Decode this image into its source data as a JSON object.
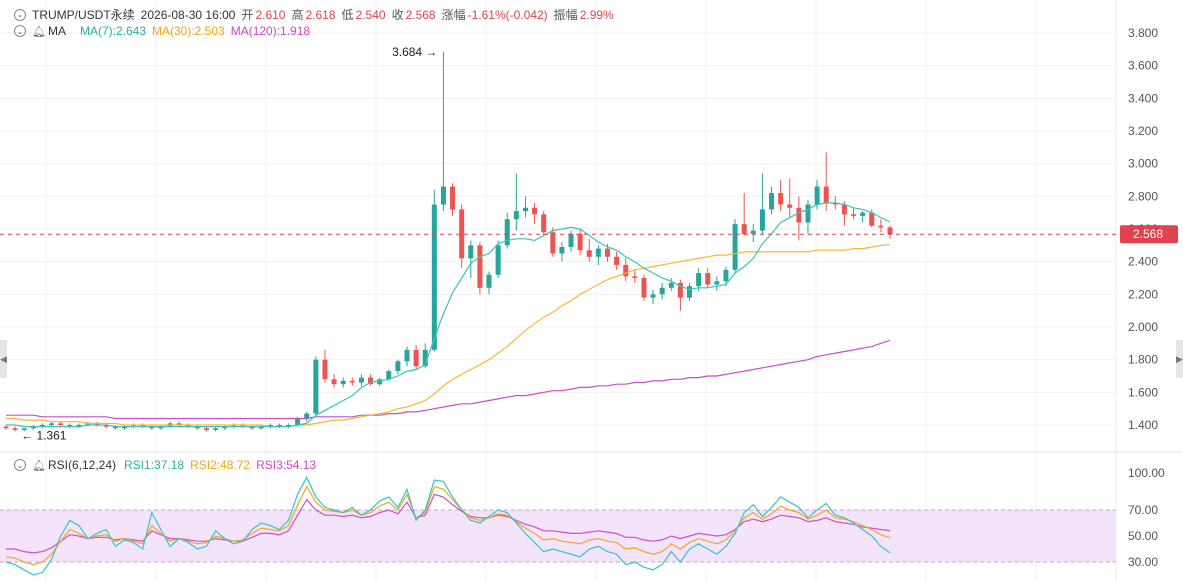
{
  "header": {
    "symbol": "TRUMP/USDT永续",
    "datetime": "2026-08-30 16:00",
    "open_label": "开",
    "open": "2.610",
    "high_label": "高",
    "high": "2.618",
    "low_label": "低",
    "low": "2.540",
    "close_label": "收",
    "close": "2.568",
    "change_label": "涨幅",
    "change": "-1.61%(-0.042)",
    "amp_label": "振幅",
    "amp": "2.99%"
  },
  "ma_header": {
    "name": "MA",
    "ma7": "MA(7):2.643",
    "ma30": "MA(30):2.503",
    "ma120": "MA(120):1.918"
  },
  "rsi_header": {
    "name": "RSI(6,12,24)",
    "rsi1": "RSI1:37.18",
    "rsi2": "RSI2:48.72",
    "rsi3": "RSI3:54.13"
  },
  "colors": {
    "up": "#26a69a",
    "down": "#ef5350",
    "ma7": "#3cc5b4",
    "ma30": "#f5b82e",
    "ma120": "#c64fcc",
    "rsi1": "#33c6c4",
    "rsi2": "#f5a623",
    "rsi3": "#d14ecf",
    "rsi_band": "#f3e3fb",
    "last_price": "#e0434f"
  },
  "chart_data": [
    {
      "type": "candlestick",
      "price_axis": {
        "min": 1.3,
        "max": 3.9,
        "ticks": [
          "3.800",
          "3.600",
          "3.400",
          "3.200",
          "3.000",
          "2.800",
          "2.600",
          "2.400",
          "2.200",
          "2.000",
          "1.800",
          "1.600",
          "1.400"
        ]
      },
      "last_price": 2.568,
      "last_price_label": "2.568",
      "high_marker": {
        "value": 3.684,
        "label": "3.684"
      },
      "low_marker": {
        "value": 1.361,
        "label": "1.361"
      },
      "candles": [
        [
          1.39,
          1.4,
          1.37,
          1.38
        ],
        [
          1.38,
          1.39,
          1.36,
          1.37
        ],
        [
          1.37,
          1.38,
          1.36,
          1.38
        ],
        [
          1.38,
          1.4,
          1.37,
          1.39
        ],
        [
          1.39,
          1.41,
          1.38,
          1.4
        ],
        [
          1.4,
          1.42,
          1.39,
          1.41
        ],
        [
          1.41,
          1.42,
          1.39,
          1.4
        ],
        [
          1.4,
          1.41,
          1.38,
          1.39
        ],
        [
          1.39,
          1.41,
          1.38,
          1.4
        ],
        [
          1.4,
          1.42,
          1.39,
          1.41
        ],
        [
          1.41,
          1.42,
          1.39,
          1.4
        ],
        [
          1.4,
          1.41,
          1.38,
          1.39
        ],
        [
          1.39,
          1.4,
          1.37,
          1.38
        ],
        [
          1.38,
          1.4,
          1.37,
          1.39
        ],
        [
          1.39,
          1.41,
          1.38,
          1.4
        ],
        [
          1.4,
          1.41,
          1.38,
          1.39
        ],
        [
          1.39,
          1.4,
          1.37,
          1.38
        ],
        [
          1.38,
          1.4,
          1.37,
          1.39
        ],
        [
          1.39,
          1.42,
          1.38,
          1.41
        ],
        [
          1.41,
          1.42,
          1.39,
          1.4
        ],
        [
          1.4,
          1.41,
          1.38,
          1.39
        ],
        [
          1.39,
          1.4,
          1.37,
          1.38
        ],
        [
          1.38,
          1.39,
          1.36,
          1.37
        ],
        [
          1.37,
          1.39,
          1.36,
          1.38
        ],
        [
          1.38,
          1.4,
          1.37,
          1.39
        ],
        [
          1.39,
          1.41,
          1.38,
          1.4
        ],
        [
          1.4,
          1.41,
          1.38,
          1.39
        ],
        [
          1.39,
          1.4,
          1.37,
          1.38
        ],
        [
          1.38,
          1.4,
          1.37,
          1.39
        ],
        [
          1.39,
          1.41,
          1.38,
          1.4
        ],
        [
          1.4,
          1.41,
          1.38,
          1.39
        ],
        [
          1.39,
          1.41,
          1.38,
          1.4
        ],
        [
          1.4,
          1.45,
          1.39,
          1.44
        ],
        [
          1.44,
          1.48,
          1.42,
          1.47
        ],
        [
          1.47,
          1.82,
          1.46,
          1.8
        ],
        [
          1.8,
          1.86,
          1.66,
          1.68
        ],
        [
          1.68,
          1.71,
          1.63,
          1.65
        ],
        [
          1.65,
          1.69,
          1.63,
          1.67
        ],
        [
          1.67,
          1.69,
          1.64,
          1.66
        ],
        [
          1.66,
          1.71,
          1.64,
          1.69
        ],
        [
          1.69,
          1.71,
          1.64,
          1.65
        ],
        [
          1.65,
          1.69,
          1.64,
          1.68
        ],
        [
          1.68,
          1.74,
          1.67,
          1.73
        ],
        [
          1.73,
          1.8,
          1.71,
          1.79
        ],
        [
          1.79,
          1.88,
          1.76,
          1.86
        ],
        [
          1.86,
          1.89,
          1.74,
          1.76
        ],
        [
          1.76,
          1.9,
          1.75,
          1.86
        ],
        [
          1.86,
          2.84,
          1.85,
          2.75
        ],
        [
          2.75,
          3.684,
          2.71,
          2.86
        ],
        [
          2.86,
          2.88,
          2.68,
          2.72
        ],
        [
          2.72,
          2.75,
          2.36,
          2.42
        ],
        [
          2.42,
          2.53,
          2.3,
          2.5
        ],
        [
          2.5,
          2.52,
          2.2,
          2.24
        ],
        [
          2.24,
          2.34,
          2.2,
          2.32
        ],
        [
          2.32,
          2.53,
          2.3,
          2.5
        ],
        [
          2.5,
          2.7,
          2.48,
          2.66
        ],
        [
          2.66,
          2.94,
          2.59,
          2.71
        ],
        [
          2.71,
          2.8,
          2.67,
          2.73
        ],
        [
          2.73,
          2.76,
          2.63,
          2.69
        ],
        [
          2.69,
          2.71,
          2.56,
          2.58
        ],
        [
          2.58,
          2.61,
          2.43,
          2.45
        ],
        [
          2.45,
          2.52,
          2.4,
          2.49
        ],
        [
          2.49,
          2.59,
          2.46,
          2.57
        ],
        [
          2.57,
          2.6,
          2.44,
          2.47
        ],
        [
          2.47,
          2.54,
          2.4,
          2.43
        ],
        [
          2.43,
          2.5,
          2.38,
          2.48
        ],
        [
          2.48,
          2.51,
          2.4,
          2.43
        ],
        [
          2.43,
          2.46,
          2.35,
          2.38
        ],
        [
          2.38,
          2.42,
          2.28,
          2.31
        ],
        [
          2.31,
          2.35,
          2.27,
          2.3
        ],
        [
          2.3,
          2.32,
          2.16,
          2.18
        ],
        [
          2.18,
          2.23,
          2.14,
          2.2
        ],
        [
          2.2,
          2.27,
          2.17,
          2.24
        ],
        [
          2.24,
          2.3,
          2.22,
          2.27
        ],
        [
          2.27,
          2.29,
          2.1,
          2.18
        ],
        [
          2.18,
          2.27,
          2.16,
          2.25
        ],
        [
          2.25,
          2.36,
          2.22,
          2.33
        ],
        [
          2.33,
          2.36,
          2.24,
          2.26
        ],
        [
          2.26,
          2.31,
          2.22,
          2.28
        ],
        [
          2.28,
          2.37,
          2.25,
          2.35
        ],
        [
          2.35,
          2.66,
          2.33,
          2.63
        ],
        [
          2.63,
          2.82,
          2.56,
          2.57
        ],
        [
          2.57,
          2.63,
          2.52,
          2.59
        ],
        [
          2.59,
          2.94,
          2.57,
          2.72
        ],
        [
          2.72,
          2.86,
          2.69,
          2.82
        ],
        [
          2.82,
          2.9,
          2.71,
          2.75
        ],
        [
          2.75,
          2.91,
          2.67,
          2.73
        ],
        [
          2.73,
          2.8,
          2.53,
          2.64
        ],
        [
          2.64,
          2.78,
          2.57,
          2.75
        ],
        [
          2.75,
          2.9,
          2.72,
          2.86
        ],
        [
          2.86,
          3.07,
          2.71,
          2.76
        ],
        [
          2.76,
          2.8,
          2.72,
          2.75
        ],
        [
          2.75,
          2.77,
          2.62,
          2.69
        ],
        [
          2.69,
          2.73,
          2.66,
          2.68
        ],
        [
          2.68,
          2.71,
          2.64,
          2.7
        ],
        [
          2.7,
          2.72,
          2.61,
          2.62
        ],
        [
          2.62,
          2.66,
          2.58,
          2.61
        ],
        [
          2.61,
          2.62,
          2.54,
          2.568
        ]
      ],
      "ma7": [
        1.4,
        1.4,
        1.39,
        1.39,
        1.39,
        1.39,
        1.39,
        1.39,
        1.39,
        1.4,
        1.4,
        1.4,
        1.39,
        1.39,
        1.39,
        1.39,
        1.39,
        1.39,
        1.39,
        1.39,
        1.39,
        1.39,
        1.39,
        1.39,
        1.39,
        1.39,
        1.39,
        1.39,
        1.39,
        1.39,
        1.39,
        1.39,
        1.4,
        1.41,
        1.46,
        1.49,
        1.52,
        1.55,
        1.58,
        1.63,
        1.66,
        1.67,
        1.68,
        1.7,
        1.73,
        1.74,
        1.77,
        1.93,
        2.08,
        2.21,
        2.3,
        2.39,
        2.43,
        2.45,
        2.51,
        2.53,
        2.54,
        2.54,
        2.53,
        2.56,
        2.59,
        2.6,
        2.61,
        2.6,
        2.56,
        2.52,
        2.49,
        2.47,
        2.43,
        2.4,
        2.36,
        2.33,
        2.3,
        2.28,
        2.25,
        2.23,
        2.24,
        2.24,
        2.25,
        2.26,
        2.33,
        2.37,
        2.42,
        2.51,
        2.57,
        2.64,
        2.67,
        2.7,
        2.72,
        2.75,
        2.76,
        2.76,
        2.75,
        2.73,
        2.72,
        2.7,
        2.67,
        2.643
      ],
      "ma30": [
        1.44,
        1.44,
        1.43,
        1.43,
        1.43,
        1.42,
        1.42,
        1.42,
        1.42,
        1.41,
        1.41,
        1.41,
        1.41,
        1.4,
        1.4,
        1.4,
        1.4,
        1.4,
        1.4,
        1.4,
        1.4,
        1.4,
        1.4,
        1.4,
        1.4,
        1.4,
        1.4,
        1.4,
        1.4,
        1.39,
        1.39,
        1.39,
        1.4,
        1.4,
        1.41,
        1.42,
        1.43,
        1.43,
        1.44,
        1.45,
        1.46,
        1.47,
        1.48,
        1.5,
        1.51,
        1.53,
        1.55,
        1.59,
        1.64,
        1.68,
        1.71,
        1.74,
        1.77,
        1.8,
        1.84,
        1.88,
        1.93,
        1.98,
        2.02,
        2.06,
        2.09,
        2.13,
        2.16,
        2.2,
        2.23,
        2.26,
        2.29,
        2.31,
        2.33,
        2.35,
        2.36,
        2.37,
        2.38,
        2.39,
        2.4,
        2.41,
        2.42,
        2.43,
        2.44,
        2.44,
        2.45,
        2.46,
        2.46,
        2.46,
        2.46,
        2.46,
        2.46,
        2.46,
        2.46,
        2.47,
        2.47,
        2.47,
        2.47,
        2.48,
        2.48,
        2.49,
        2.5,
        2.503
      ],
      "ma120": [
        1.46,
        1.46,
        1.46,
        1.46,
        1.45,
        1.45,
        1.45,
        1.45,
        1.45,
        1.45,
        1.45,
        1.45,
        1.44,
        1.44,
        1.44,
        1.44,
        1.44,
        1.44,
        1.44,
        1.44,
        1.44,
        1.44,
        1.44,
        1.44,
        1.44,
        1.44,
        1.44,
        1.44,
        1.44,
        1.44,
        1.44,
        1.44,
        1.44,
        1.44,
        1.45,
        1.45,
        1.45,
        1.45,
        1.45,
        1.46,
        1.46,
        1.46,
        1.47,
        1.47,
        1.48,
        1.48,
        1.49,
        1.5,
        1.51,
        1.52,
        1.53,
        1.53,
        1.54,
        1.55,
        1.56,
        1.57,
        1.58,
        1.58,
        1.59,
        1.6,
        1.61,
        1.61,
        1.62,
        1.63,
        1.63,
        1.64,
        1.64,
        1.65,
        1.65,
        1.66,
        1.66,
        1.67,
        1.67,
        1.68,
        1.68,
        1.69,
        1.69,
        1.7,
        1.7,
        1.71,
        1.72,
        1.73,
        1.74,
        1.75,
        1.76,
        1.77,
        1.78,
        1.79,
        1.8,
        1.82,
        1.83,
        1.84,
        1.85,
        1.86,
        1.87,
        1.88,
        1.9,
        1.918
      ]
    },
    {
      "type": "line",
      "name": "RSI",
      "y_axis": {
        "min": 20,
        "max": 105,
        "ticks": [
          "100.00",
          "70.00",
          "50.00",
          "30.00"
        ]
      },
      "band": [
        30,
        70
      ],
      "rsi1": [
        30,
        28,
        24,
        20,
        22,
        32,
        50,
        62,
        58,
        48,
        52,
        55,
        42,
        47,
        45,
        40,
        68,
        55,
        42,
        48,
        45,
        40,
        42,
        54,
        48,
        44,
        46,
        55,
        60,
        58,
        55,
        62,
        82,
        95,
        80,
        72,
        70,
        68,
        72,
        66,
        70,
        77,
        80,
        72,
        86,
        62,
        70,
        93,
        92,
        80,
        70,
        62,
        60,
        65,
        70,
        68,
        60,
        52,
        45,
        38,
        40,
        38,
        36,
        34,
        40,
        42,
        38,
        36,
        28,
        30,
        26,
        24,
        28,
        38,
        30,
        40,
        44,
        40,
        36,
        42,
        52,
        68,
        74,
        65,
        72,
        80,
        76,
        72,
        64,
        70,
        75,
        66,
        64,
        60,
        55,
        50,
        42,
        37.18
      ],
      "rsi2": [
        34,
        33,
        30,
        28,
        30,
        36,
        46,
        55,
        52,
        48,
        50,
        51,
        46,
        48,
        46,
        44,
        58,
        52,
        46,
        48,
        46,
        44,
        45,
        50,
        48,
        46,
        47,
        52,
        56,
        55,
        54,
        58,
        74,
        88,
        76,
        70,
        69,
        68,
        70,
        66,
        68,
        73,
        76,
        70,
        82,
        64,
        68,
        88,
        86,
        78,
        70,
        64,
        62,
        64,
        67,
        66,
        61,
        56,
        52,
        47,
        48,
        46,
        45,
        44,
        47,
        48,
        46,
        45,
        40,
        41,
        38,
        36,
        38,
        44,
        40,
        45,
        48,
        46,
        44,
        47,
        54,
        64,
        68,
        63,
        67,
        73,
        70,
        68,
        63,
        66,
        70,
        64,
        63,
        61,
        58,
        55,
        51,
        48.72
      ],
      "rsi3": [
        40,
        40,
        38,
        37,
        38,
        41,
        46,
        51,
        50,
        48,
        49,
        49,
        47,
        48,
        47,
        46,
        54,
        51,
        48,
        48,
        47,
        46,
        46,
        48,
        47,
        46,
        46,
        49,
        52,
        52,
        51,
        54,
        66,
        78,
        70,
        66,
        66,
        65,
        66,
        64,
        65,
        68,
        70,
        67,
        76,
        64,
        66,
        82,
        80,
        74,
        69,
        65,
        64,
        64,
        66,
        65,
        62,
        59,
        57,
        54,
        54,
        53,
        52,
        52,
        53,
        54,
        53,
        52,
        49,
        49,
        47,
        46,
        47,
        50,
        48,
        50,
        52,
        51,
        50,
        51,
        55,
        61,
        63,
        61,
        63,
        66,
        65,
        64,
        61,
        62,
        64,
        61,
        60,
        59,
        57,
        56,
        55,
        54.13
      ]
    }
  ]
}
